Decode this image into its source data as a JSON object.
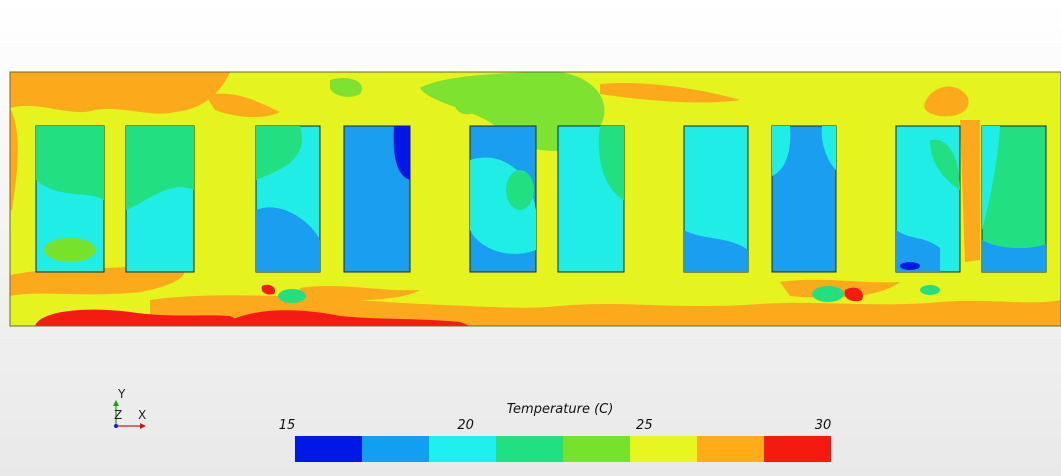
{
  "axis_triad": {
    "y_label": "Y",
    "z_label": "Z",
    "x_label": "X"
  },
  "legend": {
    "title": "Temperature (C)",
    "min": 15,
    "max": 30,
    "ticks": [
      {
        "value": 15,
        "label": "15"
      },
      {
        "value": 20,
        "label": "20"
      },
      {
        "value": 25,
        "label": "25"
      },
      {
        "value": 30,
        "label": "30"
      }
    ],
    "bin_colors": [
      "#0018e6",
      "#129ff2",
      "#1ff0ee",
      "#22e082",
      "#76e22c",
      "#e7f520",
      "#ffac18",
      "#f51a10"
    ]
  },
  "colors": {
    "domain_base": "#e5f31e",
    "window_cool": "#20ede6",
    "window_blue": "#1a9ef0",
    "warm": "#fcaa1c",
    "hot": "#f51a12",
    "mild": "#7ee330"
  }
}
